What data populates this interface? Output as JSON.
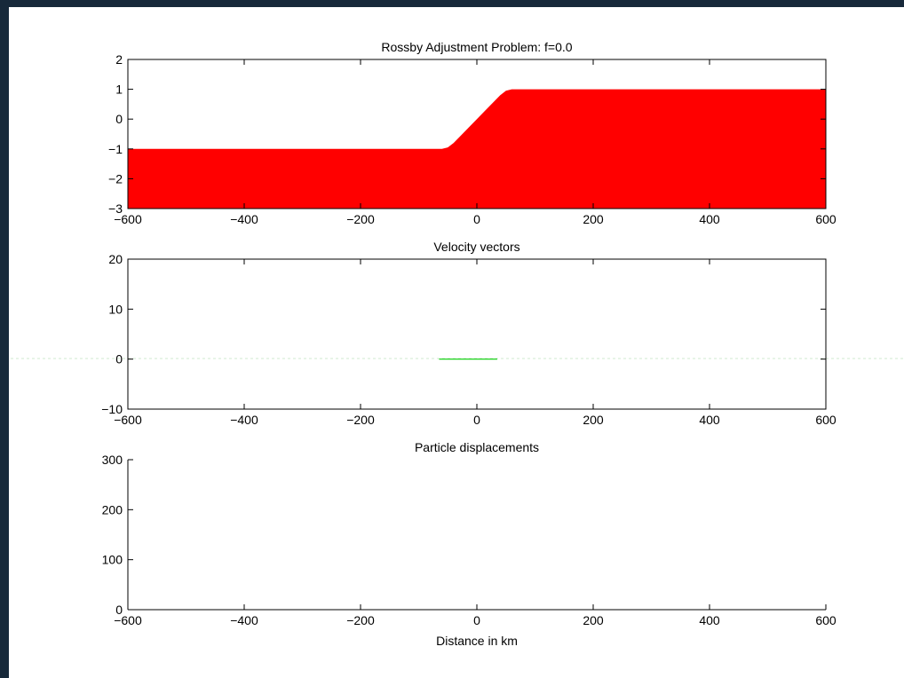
{
  "chart_data": [
    {
      "type": "area",
      "title": "Rossby Adjustment Problem: f=0.0",
      "xlim": [
        -600,
        600
      ],
      "ylim": [
        -3,
        2
      ],
      "xticks": [
        "−600",
        "−400",
        "−200",
        "0",
        "200",
        "400",
        "600"
      ],
      "yticks": [
        "−3",
        "−2",
        "−1",
        "0",
        "1",
        "2"
      ],
      "fill_color": "#ff0000",
      "baseline": -3,
      "x": [
        -600,
        -60,
        -50,
        -40,
        0,
        40,
        50,
        60,
        600
      ],
      "y": [
        -1,
        -1,
        -0.95,
        -0.8,
        0,
        0.8,
        0.95,
        1,
        1
      ]
    },
    {
      "type": "line",
      "title": "Velocity vectors",
      "xlim": [
        -600,
        600
      ],
      "ylim": [
        -10,
        20
      ],
      "xticks": [
        "−600",
        "−400",
        "−200",
        "0",
        "200",
        "400",
        "600"
      ],
      "yticks": [
        "−10",
        "0",
        "10",
        "20"
      ],
      "line_color": "#00cc00",
      "x": [
        -65,
        35
      ],
      "y": [
        0,
        0
      ]
    },
    {
      "type": "scatter",
      "title": "Particle displacements",
      "xlabel": "Distance in km",
      "xlim": [
        -600,
        600
      ],
      "ylim": [
        0,
        300
      ],
      "xticks": [
        "−600",
        "−400",
        "−200",
        "0",
        "200",
        "400",
        "600"
      ],
      "yticks": [
        "0",
        "100",
        "200",
        "300"
      ],
      "x": [],
      "y": []
    }
  ]
}
